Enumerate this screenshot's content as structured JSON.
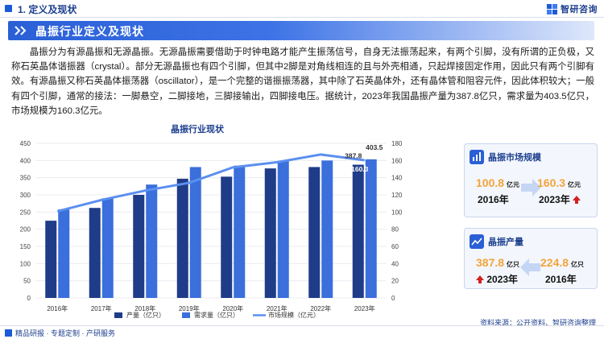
{
  "header": {
    "section": "1. 定义及现状",
    "logo_text": "智研咨询"
  },
  "title": "晶振行业定义及现状",
  "paragraph": "晶振分为有源晶振和无源晶振。无源晶振需要借助于时钟电路才能产生振荡信号，自身无法振荡起来，有两个引脚，没有所谓的正负极，又称石英晶体谐振器（crystal）。部分无源晶振也有四个引脚，但其中2脚是对角线相连的且与外壳相通，只起焊接固定作用，因此只有两个引脚有效。有源晶振又称石英晶体振荡器（oscillator），是一个完整的谐振振荡器，其中除了石英晶体外，还有晶体管和阻容元件，因此体积较大；一般有四个引脚，通常的接法：一脚悬空，二脚接地，三脚接输出，四脚接电压。据统计，2023年我国晶振产量为387.8亿只，需求量为403.5亿只，市场规模为160.3亿元。",
  "chart_data": {
    "type": "bar",
    "title": "晶振行业现状",
    "categories": [
      "2016年",
      "2017年",
      "2018年",
      "2019年",
      "2020年",
      "2021年",
      "2022年",
      "2023年"
    ],
    "series": [
      {
        "name": "产量（亿只）",
        "kind": "bar",
        "axis": "left",
        "color": "#1f3c88",
        "values": [
          224.8,
          262,
          300,
          347,
          353,
          377,
          381,
          387.8
        ]
      },
      {
        "name": "需求量（亿只）",
        "kind": "bar",
        "axis": "left",
        "color": "#3a6fdc",
        "values": [
          258,
          290,
          330,
          381,
          385,
          399,
          400,
          403.5
        ]
      },
      {
        "name": "市场规模（亿元）",
        "kind": "line",
        "axis": "right",
        "color": "#5b8ff0",
        "values": [
          100.8,
          114,
          125,
          134,
          152,
          158,
          167,
          160.3
        ]
      }
    ],
    "ylim_left": [
      0,
      450
    ],
    "yticks_left": [
      0,
      50,
      100,
      150,
      200,
      250,
      300,
      350,
      400,
      450
    ],
    "ylim_right": [
      0,
      180
    ],
    "yticks_right": [
      0,
      20,
      40,
      60,
      80,
      100,
      120,
      140,
      160,
      180
    ],
    "data_labels": {
      "production_2023": "387.8",
      "demand_2023": "403.5",
      "market_2023": "160.3"
    },
    "legend_position": "bottom"
  },
  "cards": {
    "market": {
      "title": "晶振市场规模",
      "from_value": "100.8",
      "from_unit": "亿元",
      "from_year": "2016年",
      "to_value": "160.3",
      "to_unit": "亿元",
      "to_year": "2023年"
    },
    "production": {
      "title": "晶振产量",
      "left_value": "387.8",
      "left_unit": "亿只",
      "left_year": "2023年",
      "right_value": "224.8",
      "right_unit": "亿只",
      "right_year": "2016年"
    }
  },
  "footer": {
    "left": "精品研报 · 专题定制 · 产研服务",
    "source": "资料来源：公开资料、智研咨询整理"
  },
  "colors": {
    "accent": "#1c5bd8",
    "navy": "#1d3f8f",
    "orange": "#f3a43a",
    "red": "#d42020"
  }
}
